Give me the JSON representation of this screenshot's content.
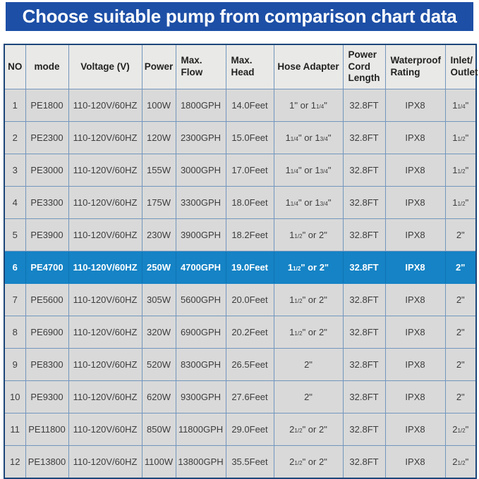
{
  "page_title": "Choose suitable pump from comparison chart data",
  "colors": {
    "banner_blue": "#1d4fa6",
    "highlight_blue": "#1583c5",
    "cell_gray": "#d9d9d9",
    "header_gray": "#e9e9e7",
    "inner_border": "#7296bd",
    "outer_border": "#1c4679",
    "text_dark": "#3d3d3d",
    "highlight_divider": "#0f74b4"
  },
  "chart_data": {
    "type": "table",
    "title": "Choose suitable pump from comparison chart data",
    "highlighted_row_no": 6,
    "columns": [
      "NO",
      "mode",
      "Voltage (V)",
      "Power",
      "Max.\nFlow",
      "Max.\nHead",
      "Hose Adapter",
      "Power\nCord\nLength",
      "Waterproof\nRating",
      "Inlet/\nOutlet"
    ],
    "rows": [
      {
        "no": "1",
        "mode": "PE1800",
        "voltage": "110-120V/60HZ",
        "power": "100W",
        "max_flow": "1800GPH",
        "max_head": "14.0Feet",
        "hose_adapter": "1\" or 1{1/4}\"",
        "power_cord_length": "32.8FT",
        "waterproof_rating": "IPX8",
        "inlet_outlet": "1{1/4}\"",
        "highlighted": false
      },
      {
        "no": "2",
        "mode": "PE2300",
        "voltage": "110-120V/60HZ",
        "power": "120W",
        "max_flow": "2300GPH",
        "max_head": "15.0Feet",
        "hose_adapter": "1{1/4}\" or 1{3/4}\"",
        "power_cord_length": "32.8FT",
        "waterproof_rating": "IPX8",
        "inlet_outlet": "1{1/2}\"",
        "highlighted": false
      },
      {
        "no": "3",
        "mode": "PE3000",
        "voltage": "110-120V/60HZ",
        "power": "155W",
        "max_flow": "3000GPH",
        "max_head": "17.0Feet",
        "hose_adapter": "1{1/4}\" or 1{3/4}\"",
        "power_cord_length": "32.8FT",
        "waterproof_rating": "IPX8",
        "inlet_outlet": "1{1/2}\"",
        "highlighted": false
      },
      {
        "no": "4",
        "mode": "PE3300",
        "voltage": "110-120V/60HZ",
        "power": "175W",
        "max_flow": "3300GPH",
        "max_head": "18.0Feet",
        "hose_adapter": "1{1/4}\" or 1{3/4}\"",
        "power_cord_length": "32.8FT",
        "waterproof_rating": "IPX8",
        "inlet_outlet": "1{1/2}\"",
        "highlighted": false
      },
      {
        "no": "5",
        "mode": "PE3900",
        "voltage": "110-120V/60HZ",
        "power": "230W",
        "max_flow": "3900GPH",
        "max_head": "18.2Feet",
        "hose_adapter": "1{1/2}\" or 2\"",
        "power_cord_length": "32.8FT",
        "waterproof_rating": "IPX8",
        "inlet_outlet": "2\"",
        "highlighted": false
      },
      {
        "no": "6",
        "mode": "PE4700",
        "voltage": "110-120V/60HZ",
        "power": "250W",
        "max_flow": "4700GPH",
        "max_head": "19.0Feet",
        "hose_adapter": "1{1/2}\" or 2\"",
        "power_cord_length": "32.8FT",
        "waterproof_rating": "IPX8",
        "inlet_outlet": "2\"",
        "highlighted": true
      },
      {
        "no": "7",
        "mode": "PE5600",
        "voltage": "110-120V/60HZ",
        "power": "305W",
        "max_flow": "5600GPH",
        "max_head": "20.0Feet",
        "hose_adapter": "1{1/2}\" or 2\"",
        "power_cord_length": "32.8FT",
        "waterproof_rating": "IPX8",
        "inlet_outlet": "2\"",
        "highlighted": false
      },
      {
        "no": "8",
        "mode": "PE6900",
        "voltage": "110-120V/60HZ",
        "power": "320W",
        "max_flow": "6900GPH",
        "max_head": "20.2Feet",
        "hose_adapter": "1{1/2}\" or 2\"",
        "power_cord_length": "32.8FT",
        "waterproof_rating": "IPX8",
        "inlet_outlet": "2\"",
        "highlighted": false
      },
      {
        "no": "9",
        "mode": "PE8300",
        "voltage": "110-120V/60HZ",
        "power": "520W",
        "max_flow": "8300GPH",
        "max_head": "26.5Feet",
        "hose_adapter": "2\"",
        "power_cord_length": "32.8FT",
        "waterproof_rating": "IPX8",
        "inlet_outlet": "2\"",
        "highlighted": false
      },
      {
        "no": "10",
        "mode": "PE9300",
        "voltage": "110-120V/60HZ",
        "power": "620W",
        "max_flow": "9300GPH",
        "max_head": "27.6Feet",
        "hose_adapter": "2\"",
        "power_cord_length": "32.8FT",
        "waterproof_rating": "IPX8",
        "inlet_outlet": "2\"",
        "highlighted": false
      },
      {
        "no": "11",
        "mode": "PE11800",
        "voltage": "110-120V/60HZ",
        "power": "850W",
        "max_flow": "11800GPH",
        "max_head": "29.0Feet",
        "hose_adapter": "2{1/2}\" or 2\"",
        "power_cord_length": "32.8FT",
        "waterproof_rating": "IPX8",
        "inlet_outlet": "2{1/2}\"",
        "highlighted": false
      },
      {
        "no": "12",
        "mode": "PE13800",
        "voltage": "110-120V/60HZ",
        "power": "1100W",
        "max_flow": "13800GPH",
        "max_head": "35.5Feet",
        "hose_adapter": "2{1/2}\" or 2\"",
        "power_cord_length": "32.8FT",
        "waterproof_rating": "IPX8",
        "inlet_outlet": "2{1/2}\"",
        "highlighted": false
      }
    ]
  }
}
